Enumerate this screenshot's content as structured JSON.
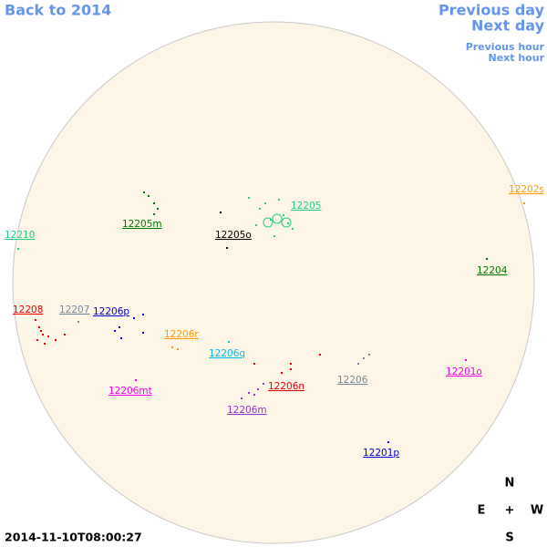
{
  "navigation": {
    "back": "Back to 2014",
    "previous_day": "Previous day",
    "next_day": "Next day",
    "previous_hour": "Previous hour",
    "next_hour": "Next hour"
  },
  "regions": [
    {
      "label": "12205",
      "color": "#22cc88"
    },
    {
      "label": "12205m",
      "color": "#007700"
    },
    {
      "label": "12205o",
      "color": "#000000"
    },
    {
      "label": "12210",
      "color": "#22cc88"
    },
    {
      "label": "12202s",
      "color": "#ff9900"
    },
    {
      "label": "12204",
      "color": "#007700"
    },
    {
      "label": "12208",
      "color": "#ee0000"
    },
    {
      "label": "12207",
      "color": "#778899"
    },
    {
      "label": "12206p",
      "color": "#0000cc"
    },
    {
      "label": "12206r",
      "color": "#ff9900"
    },
    {
      "label": "12206q",
      "color": "#00bbee"
    },
    {
      "label": "12206",
      "color": "#778899"
    },
    {
      "label": "12201o",
      "color": "#ee00ee"
    },
    {
      "label": "12206mt",
      "color": "#ee00ee"
    },
    {
      "label": "12206n",
      "color": "#ee0000"
    },
    {
      "label": "12206m",
      "color": "#9933cc"
    },
    {
      "label": "12201p",
      "color": "#0000cc"
    }
  ],
  "compass": {
    "north": "N",
    "east": "E",
    "center": "+",
    "west": "W",
    "south": "S"
  },
  "timestamp": "2014-11-10T08:00:27"
}
